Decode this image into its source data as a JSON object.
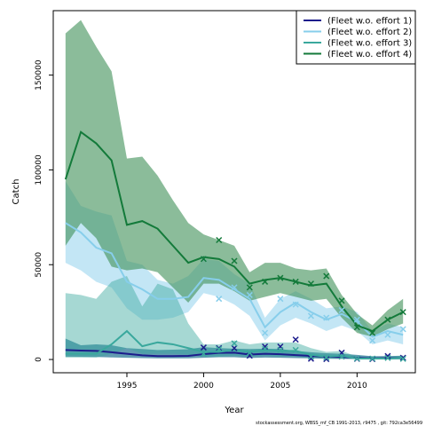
{
  "chart_data": {
    "type": "line",
    "title": "",
    "xlabel": "Year",
    "ylabel": "Catch",
    "xlim": [
      1990.2,
      2013.8
    ],
    "ylim": [
      -7000,
      184000
    ],
    "xticks": [
      1995,
      2000,
      2005,
      2010
    ],
    "yticks": [
      0,
      50000,
      100000,
      150000
    ],
    "legend_position": "top-right",
    "footer": "stockassessment.org, WBSS_mf_CB 1991-2013, r9475 , git: 792ca3e56499",
    "series": [
      {
        "name": "(Fleet w.o. effort 1)",
        "color": "#1c1c8c",
        "fill": "#2d7a97",
        "fill_opacity": 0.75,
        "years": [
          1991,
          1992,
          1993,
          1994,
          1995,
          1996,
          1997,
          1998,
          1999,
          2000,
          2001,
          2002,
          2003,
          2004,
          2005,
          2006,
          2007,
          2008,
          2009,
          2010,
          2011,
          2012,
          2013
        ],
        "estimate": [
          5000,
          4700,
          4500,
          3800,
          3000,
          2200,
          1800,
          1800,
          1900,
          2800,
          3500,
          3600,
          2600,
          3000,
          2800,
          2300,
          1900,
          1500,
          1300,
          900,
          600,
          700,
          800
        ],
        "lower": [
          1500,
          1400,
          1300,
          1100,
          900,
          700,
          600,
          600,
          600,
          900,
          1200,
          1200,
          800,
          1000,
          900,
          700,
          600,
          400,
          300,
          200,
          100,
          100,
          100
        ],
        "upper": [
          11000,
          7500,
          8000,
          7500,
          6000,
          5500,
          5000,
          5200,
          5400,
          6500,
          6000,
          5700,
          5500,
          5700,
          5500,
          4500,
          3800,
          3300,
          3000,
          2400,
          1700,
          1800,
          2000
        ],
        "observed": [
          null,
          null,
          null,
          null,
          null,
          null,
          null,
          null,
          null,
          6300,
          6000,
          6000,
          2000,
          6800,
          6800,
          10500,
          400,
          200,
          3600,
          300,
          200,
          1800,
          900
        ]
      },
      {
        "name": "(Fleet w.o. effort 2)",
        "color": "#87ceeb",
        "fill": "#87ceeb",
        "fill_opacity": 0.5,
        "years": [
          1991,
          1992,
          1993,
          1994,
          1995,
          1996,
          1997,
          1998,
          1999,
          2000,
          2001,
          2002,
          2003,
          2004,
          2005,
          2006,
          2007,
          2008,
          2009,
          2010,
          2011,
          2012,
          2013
        ],
        "estimate": [
          72000,
          67000,
          59000,
          56000,
          41000,
          37000,
          32000,
          32000,
          33000,
          43000,
          42000,
          37000,
          32000,
          17000,
          25000,
          30000,
          25000,
          21000,
          24000,
          20000,
          12000,
          15000,
          13000
        ],
        "lower": [
          51000,
          47000,
          41000,
          38000,
          27000,
          21000,
          21000,
          22000,
          25000,
          35000,
          33000,
          29000,
          23000,
          10000,
          18000,
          22000,
          19000,
          15000,
          18000,
          15000,
          8000,
          10000,
          8000
        ],
        "upper": [
          94000,
          81000,
          78000,
          76000,
          52000,
          50000,
          42000,
          40000,
          44000,
          53000,
          52000,
          45000,
          40000,
          22000,
          32000,
          36000,
          32000,
          27000,
          28000,
          25000,
          15000,
          19000,
          17000
        ],
        "observed": [
          null,
          null,
          null,
          null,
          null,
          null,
          null,
          null,
          null,
          53000,
          32000,
          38000,
          34000,
          14000,
          32000,
          29000,
          23000,
          22000,
          26000,
          21000,
          10000,
          13000,
          16000
        ]
      },
      {
        "name": "(Fleet w.o. effort 3)",
        "color": "#3aa89d",
        "fill": "#3aa89d",
        "fill_opacity": 0.45,
        "years": [
          1991,
          1992,
          1993,
          1994,
          1995,
          1996,
          1997,
          1998,
          1999,
          2000,
          2001,
          2002,
          2003,
          2004,
          2005,
          2006,
          2007,
          2008,
          2009,
          2010,
          2011,
          2012,
          2013
        ],
        "estimate": [
          3000,
          3000,
          3000,
          8000,
          15000,
          7000,
          9000,
          8000,
          6000,
          4000,
          4000,
          5000,
          4000,
          5000,
          4500,
          4500,
          2500,
          1500,
          2000,
          500,
          500,
          500,
          800
        ],
        "lower": [
          1000,
          1000,
          1000,
          3000,
          6000,
          3000,
          3000,
          3000,
          2500,
          1500,
          1500,
          2000,
          1500,
          2000,
          1500,
          1500,
          800,
          500,
          700,
          100,
          100,
          100,
          200
        ],
        "upper": [
          35000,
          34000,
          32000,
          41000,
          44000,
          28000,
          40000,
          37000,
          19000,
          8000,
          8000,
          10000,
          8000,
          9000,
          9000,
          9000,
          6000,
          4000,
          4500,
          1500,
          1500,
          1500,
          2000
        ],
        "observed": [
          null,
          null,
          null,
          null,
          null,
          null,
          null,
          null,
          null,
          3000,
          5500,
          8500,
          3500,
          5500,
          5000,
          5000,
          1500,
          1000,
          1500,
          500,
          500,
          800,
          300
        ]
      },
      {
        "name": "(Fleet w.o. effort 4)",
        "color": "#137a3a",
        "fill": "#3d8f57",
        "fill_opacity": 0.6,
        "years": [
          1991,
          1992,
          1993,
          1994,
          1995,
          1996,
          1997,
          1998,
          1999,
          2000,
          2001,
          2002,
          2003,
          2004,
          2005,
          2006,
          2007,
          2008,
          2009,
          2010,
          2011,
          2012,
          2013
        ],
        "estimate": [
          95000,
          120000,
          114000,
          105000,
          71000,
          73000,
          69000,
          60000,
          51000,
          54000,
          53000,
          49000,
          40000,
          42000,
          43000,
          41000,
          39000,
          40000,
          28000,
          18000,
          15000,
          21000,
          25000
        ],
        "lower": [
          60000,
          72000,
          64000,
          49000,
          47000,
          48000,
          46000,
          38000,
          30000,
          40000,
          40000,
          36000,
          31000,
          33000,
          35000,
          33000,
          31000,
          32000,
          22000,
          14000,
          12000,
          16000,
          19000
        ],
        "upper": [
          172000,
          179000,
          165000,
          152000,
          106000,
          107000,
          97000,
          84000,
          72000,
          66000,
          63000,
          60000,
          46000,
          51000,
          51000,
          48000,
          47000,
          48000,
          34000,
          24000,
          18000,
          26000,
          32000
        ],
        "observed": [
          null,
          null,
          null,
          null,
          null,
          null,
          null,
          null,
          null,
          53000,
          63000,
          52000,
          38000,
          41000,
          43000,
          41000,
          40000,
          44000,
          31000,
          17000,
          14000,
          21000,
          25000
        ]
      }
    ]
  }
}
